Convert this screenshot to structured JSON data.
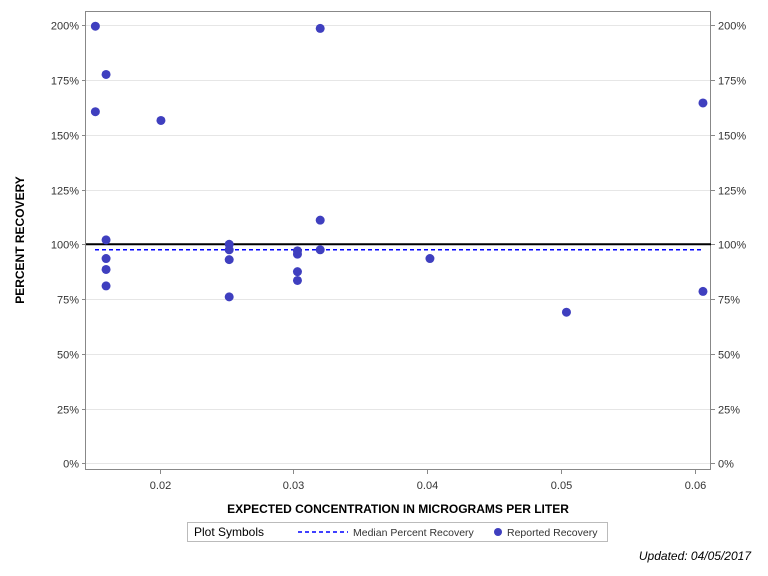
{
  "chart_data": {
    "type": "scatter",
    "xlabel": "EXPECTED CONCENTRATION IN MICROGRAMS PER LITER",
    "ylabel": "PERCENT RECOVERY",
    "xlim": [
      0.0145,
      0.0612
    ],
    "ylim": [
      -3,
      206
    ],
    "x_ticks": [
      0.02,
      0.03,
      0.04,
      0.05,
      0.06
    ],
    "x_tick_labels": [
      "0.02",
      "0.03",
      "0.04",
      "0.05",
      "0.06"
    ],
    "y_ticks": [
      0,
      25,
      50,
      75,
      100,
      125,
      150,
      175,
      200
    ],
    "y_tick_labels": [
      "0%",
      "25%",
      "50%",
      "75%",
      "100%",
      "125%",
      "150%",
      "175%",
      "200%"
    ],
    "grid": true,
    "reference_line": {
      "y": 100,
      "color": "#000000"
    },
    "median_line": {
      "y": 97.5,
      "color": "#0000ff",
      "style": "dashed"
    },
    "point_color": "#3f3fbf",
    "series": [
      {
        "name": "Reported Recovery",
        "points": [
          {
            "x": 0.0152,
            "y": 199.5
          },
          {
            "x": 0.0152,
            "y": 160.5
          },
          {
            "x": 0.016,
            "y": 177.5
          },
          {
            "x": 0.016,
            "y": 102.0
          },
          {
            "x": 0.016,
            "y": 93.5
          },
          {
            "x": 0.016,
            "y": 88.5
          },
          {
            "x": 0.016,
            "y": 81.0
          },
          {
            "x": 0.0201,
            "y": 156.5
          },
          {
            "x": 0.0252,
            "y": 100.0
          },
          {
            "x": 0.0252,
            "y": 97.5
          },
          {
            "x": 0.0252,
            "y": 93.0
          },
          {
            "x": 0.0252,
            "y": 76.0
          },
          {
            "x": 0.0303,
            "y": 97.0
          },
          {
            "x": 0.0303,
            "y": 95.5
          },
          {
            "x": 0.0303,
            "y": 87.5
          },
          {
            "x": 0.0303,
            "y": 83.5
          },
          {
            "x": 0.032,
            "y": 198.5
          },
          {
            "x": 0.032,
            "y": 111.0
          },
          {
            "x": 0.032,
            "y": 97.5
          },
          {
            "x": 0.0402,
            "y": 93.5
          },
          {
            "x": 0.0504,
            "y": 69.0
          },
          {
            "x": 0.0606,
            "y": 164.5
          },
          {
            "x": 0.0606,
            "y": 78.5
          }
        ]
      }
    ]
  },
  "legend": {
    "title": "Plot Symbols",
    "median_label": "Median Percent Recovery",
    "points_label": "Reported Recovery"
  },
  "footer": {
    "updated": "Updated: 04/05/2017"
  }
}
